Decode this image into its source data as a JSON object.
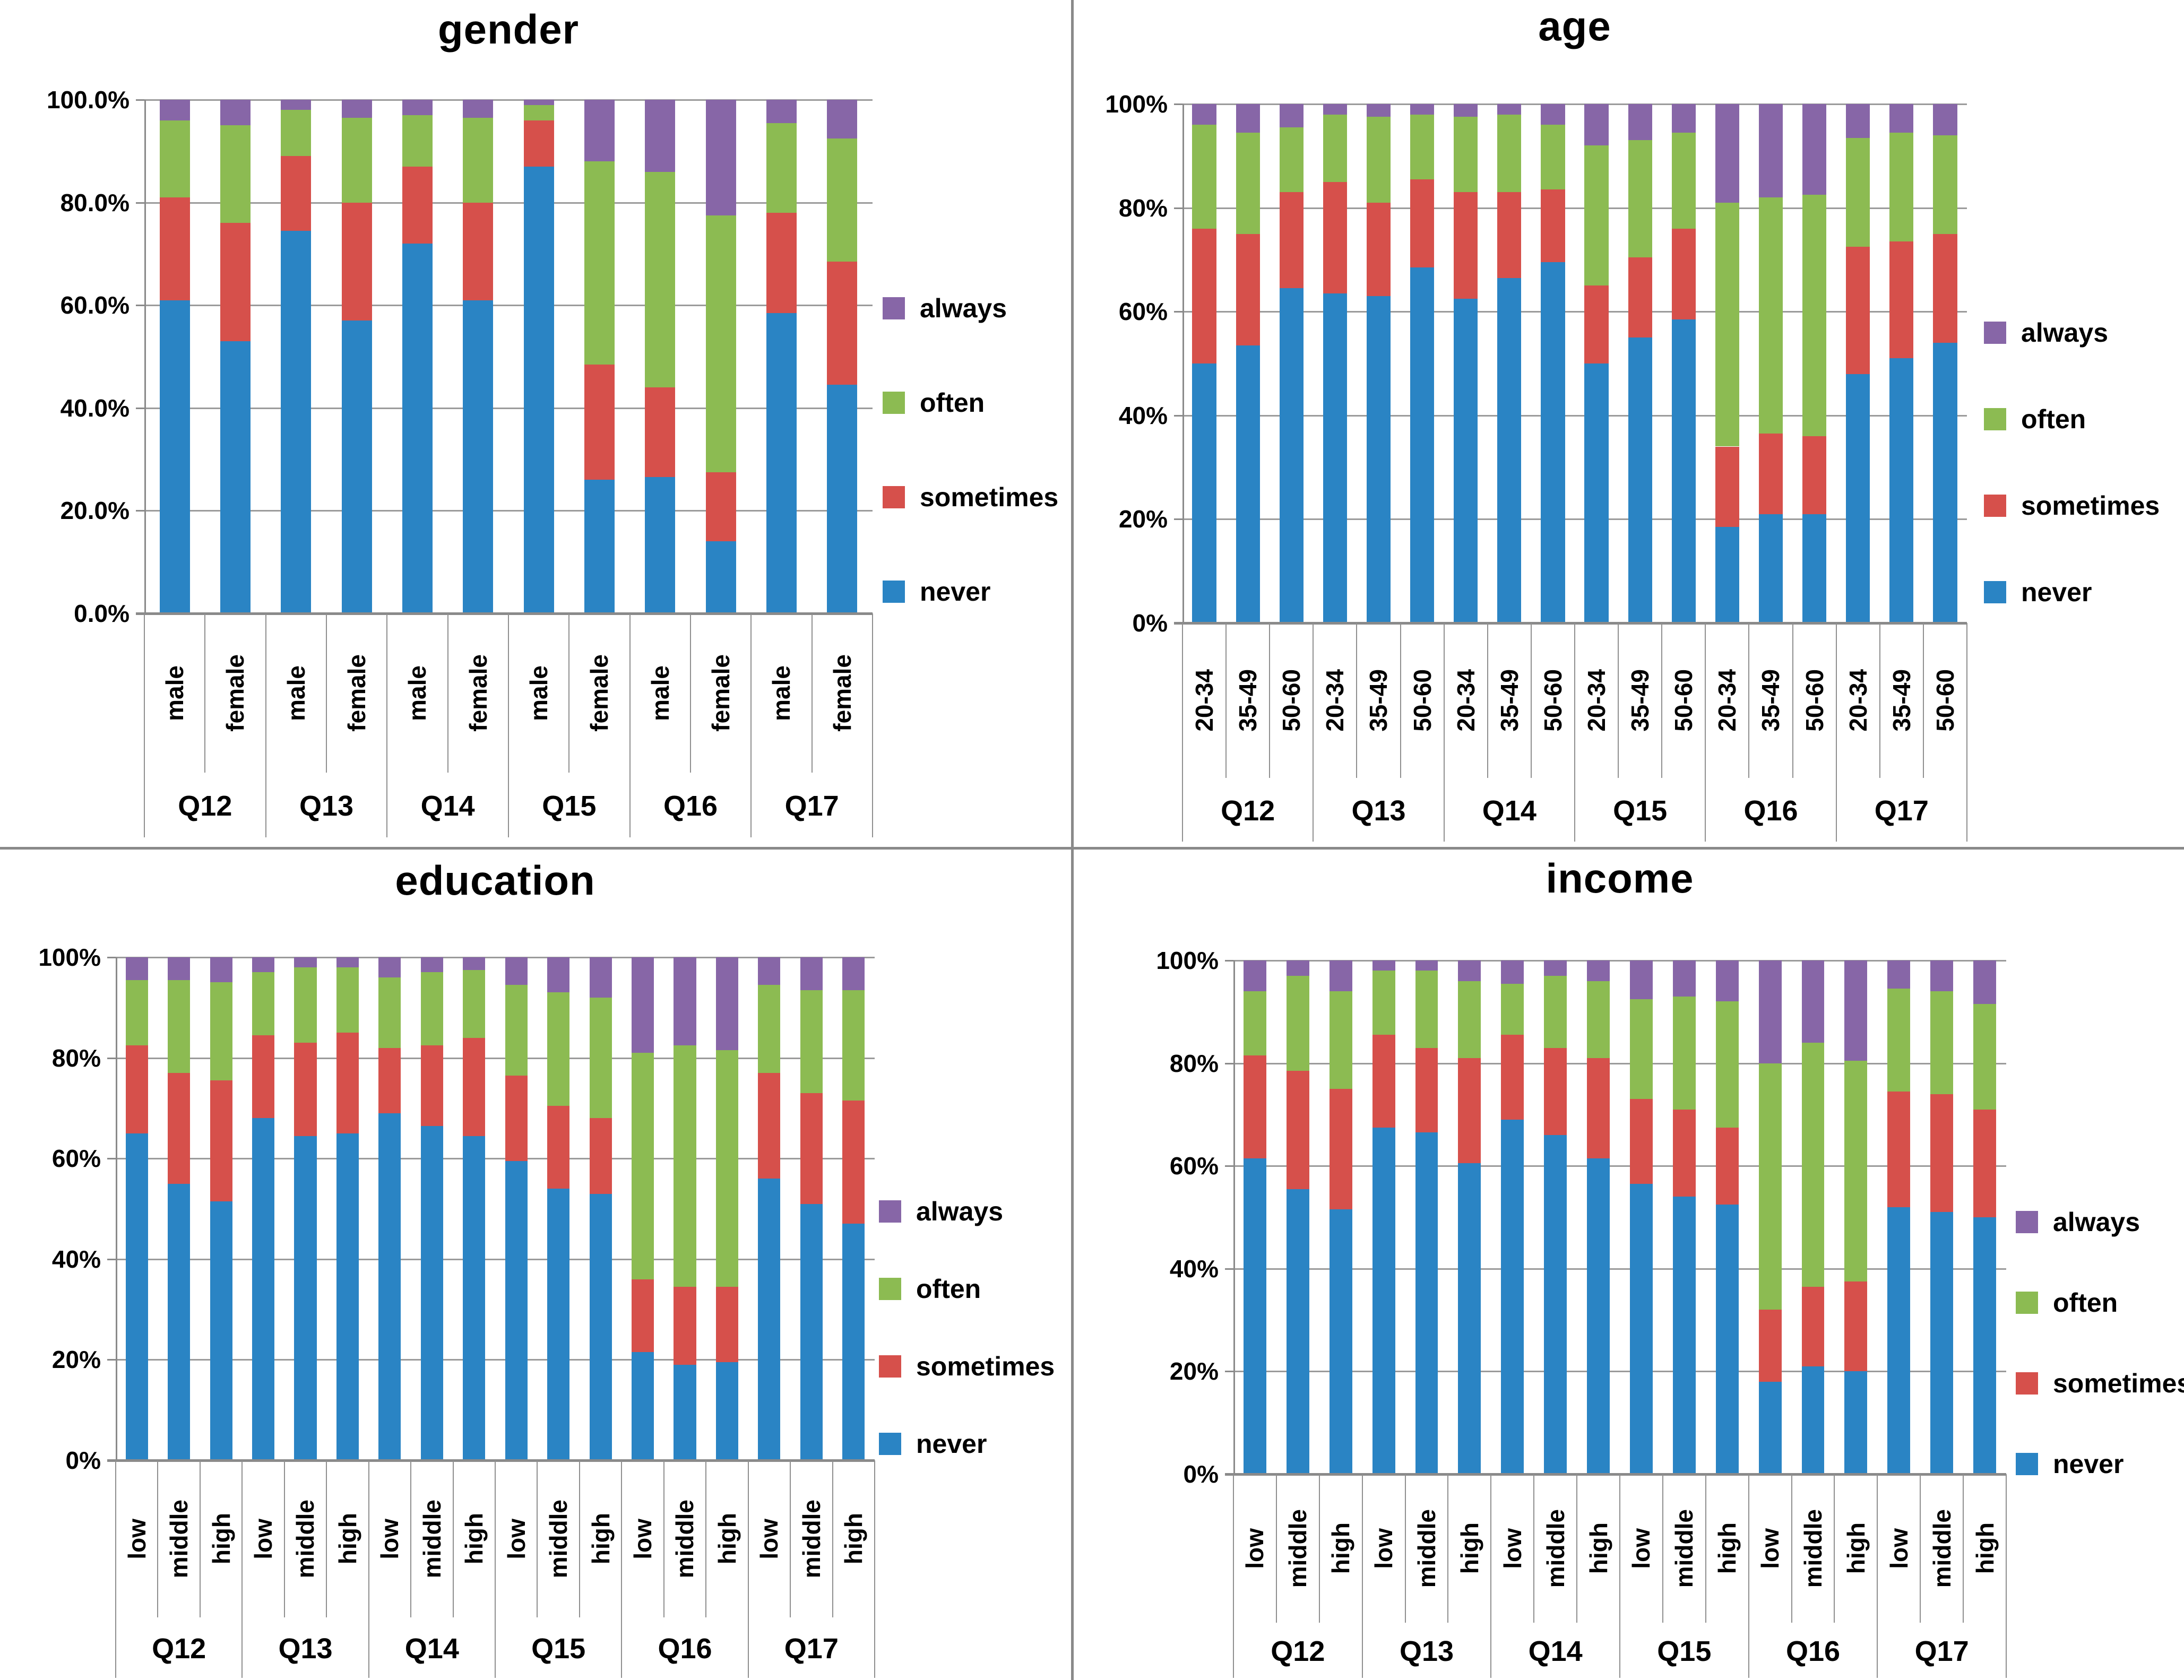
{
  "legend_labels": [
    "always",
    "often",
    "sometimes",
    "never"
  ],
  "colors": {
    "never": "#2A84C4",
    "sometimes": "#D6504B",
    "often": "#8CBB52",
    "always": "#8766A7",
    "gridline": "#9B9B9B",
    "axis": "#8A8A8A"
  },
  "chart_data": [
    {
      "id": "gender",
      "type": "bar",
      "subtype": "stacked-100",
      "title": "gender",
      "ylim": [
        0,
        100
      ],
      "grid": true,
      "legend_position": "right",
      "y_ticks": [
        "0.0%",
        "20.0%",
        "40.0%",
        "60.0%",
        "80.0%",
        "100.0%"
      ],
      "groups": [
        "Q12",
        "Q13",
        "Q14",
        "Q15",
        "Q16",
        "Q17"
      ],
      "subcategories": [
        "male",
        "female"
      ],
      "legend": [
        "always",
        "often",
        "sometimes",
        "never"
      ],
      "series": [
        {
          "name": "never",
          "color": "#2A84C4",
          "values": [
            61,
            53,
            74.5,
            57,
            72,
            61,
            87,
            26,
            26.5,
            14,
            58.5,
            44.5
          ]
        },
        {
          "name": "sometimes",
          "color": "#D6504B",
          "values": [
            20,
            23,
            14.5,
            23,
            15,
            19,
            9,
            22.5,
            17.5,
            13.5,
            19.5,
            24
          ]
        },
        {
          "name": "often",
          "color": "#8CBB52",
          "values": [
            15,
            19,
            9,
            16.5,
            10,
            16.5,
            3,
            39.5,
            42,
            50,
            17.5,
            24
          ]
        },
        {
          "name": "always",
          "color": "#8766A7",
          "values": [
            4,
            5,
            2,
            3.5,
            3,
            3.5,
            1,
            12,
            14,
            22.5,
            4.5,
            7.5
          ]
        }
      ]
    },
    {
      "id": "age",
      "type": "bar",
      "subtype": "stacked-100",
      "title": "age",
      "ylim": [
        0,
        100
      ],
      "grid": true,
      "legend_position": "right",
      "y_ticks": [
        "0%",
        "20%",
        "40%",
        "60%",
        "80%",
        "100%"
      ],
      "groups": [
        "Q12",
        "Q13",
        "Q14",
        "Q15",
        "Q16",
        "Q17"
      ],
      "subcategories": [
        "20-34",
        "35-49",
        "50-60"
      ],
      "legend": [
        "always",
        "often",
        "sometimes",
        "never"
      ],
      "series": [
        {
          "name": "never",
          "color": "#2A84C4",
          "values": [
            50,
            53.5,
            64.5,
            63.5,
            63,
            68.5,
            62.5,
            66.5,
            69.5,
            50,
            55,
            58.5,
            18.5,
            21,
            21,
            48,
            51,
            54
          ]
        },
        {
          "name": "sometimes",
          "color": "#D6504B",
          "values": [
            26,
            21.5,
            18.5,
            21.5,
            18,
            17,
            20.5,
            16.5,
            14,
            15,
            15.5,
            17.5,
            15.5,
            15.5,
            15,
            24.5,
            22.5,
            21
          ]
        },
        {
          "name": "often",
          "color": "#8CBB52",
          "values": [
            20,
            19.5,
            12.5,
            13,
            16.5,
            12.5,
            14.5,
            15,
            12.5,
            27,
            22.5,
            18.5,
            47,
            45.5,
            46.5,
            21,
            21,
            19
          ]
        },
        {
          "name": "always",
          "color": "#8766A7",
          "values": [
            4,
            5.5,
            4.5,
            2,
            2.5,
            2,
            2.5,
            2,
            4,
            8,
            7,
            5.5,
            19,
            18,
            17.5,
            6.5,
            5.5,
            6
          ]
        }
      ]
    },
    {
      "id": "education",
      "type": "bar",
      "subtype": "stacked-100",
      "title": "education",
      "ylim": [
        0,
        100
      ],
      "grid": true,
      "legend_position": "right",
      "y_ticks": [
        "0%",
        "20%",
        "40%",
        "60%",
        "80%",
        "100%"
      ],
      "groups": [
        "Q12",
        "Q13",
        "Q14",
        "Q15",
        "Q16",
        "Q17"
      ],
      "subcategories": [
        "low",
        "middle",
        "high"
      ],
      "legend": [
        "always",
        "often",
        "sometimes",
        "never"
      ],
      "series": [
        {
          "name": "never",
          "color": "#2A84C4",
          "values": [
            65,
            55,
            51.5,
            68,
            64.5,
            65,
            69,
            66.5,
            64.5,
            59.5,
            54,
            53,
            21.5,
            19,
            19.5,
            56,
            51,
            47
          ]
        },
        {
          "name": "sometimes",
          "color": "#D6504B",
          "values": [
            17.5,
            22,
            24,
            16.5,
            18.5,
            20,
            13,
            16,
            19.5,
            17,
            16.5,
            15,
            14.5,
            15.5,
            15,
            21,
            22,
            24.5
          ]
        },
        {
          "name": "often",
          "color": "#8CBB52",
          "values": [
            13,
            18.5,
            19.5,
            12.5,
            15,
            13,
            14,
            14.5,
            13.5,
            18,
            22.5,
            24,
            45,
            48,
            47,
            17.5,
            20.5,
            22
          ]
        },
        {
          "name": "always",
          "color": "#8766A7",
          "values": [
            4.5,
            4.5,
            5,
            3,
            2,
            2,
            4,
            3,
            2.5,
            5.5,
            7,
            8,
            19,
            17.5,
            18.5,
            5.5,
            6.5,
            6.5
          ]
        }
      ]
    },
    {
      "id": "income",
      "type": "bar",
      "subtype": "stacked-100",
      "title": "income",
      "ylim": [
        0,
        100
      ],
      "grid": true,
      "legend_position": "right",
      "y_ticks": [
        "0%",
        "20%",
        "40%",
        "60%",
        "80%",
        "100%"
      ],
      "groups": [
        "Q12",
        "Q13",
        "Q14",
        "Q15",
        "Q16",
        "Q17"
      ],
      "subcategories": [
        "low",
        "middle",
        "high"
      ],
      "legend": [
        "always",
        "often",
        "sometimes",
        "never"
      ],
      "series": [
        {
          "name": "never",
          "color": "#2A84C4",
          "values": [
            61.5,
            55.5,
            51.5,
            67.5,
            66.5,
            60.5,
            69,
            66,
            61.5,
            56.5,
            54,
            52.5,
            18,
            21,
            20,
            52,
            51,
            50
          ]
        },
        {
          "name": "sometimes",
          "color": "#D6504B",
          "values": [
            20,
            23,
            23.5,
            18,
            16.5,
            20.5,
            16.5,
            17,
            19.5,
            16.5,
            17,
            15,
            14,
            15.5,
            17.5,
            22.5,
            23,
            21
          ]
        },
        {
          "name": "often",
          "color": "#8CBB52",
          "values": [
            12.5,
            18.5,
            19,
            12.5,
            15,
            15,
            10,
            14,
            15,
            19.5,
            22,
            24.5,
            48,
            47.5,
            43,
            20,
            20,
            20.5
          ]
        },
        {
          "name": "always",
          "color": "#8766A7",
          "values": [
            6,
            3,
            6,
            2,
            2,
            4,
            4.5,
            3,
            4,
            7.5,
            7,
            8,
            20,
            16,
            19.5,
            5.5,
            6,
            8.5
          ]
        }
      ]
    }
  ]
}
